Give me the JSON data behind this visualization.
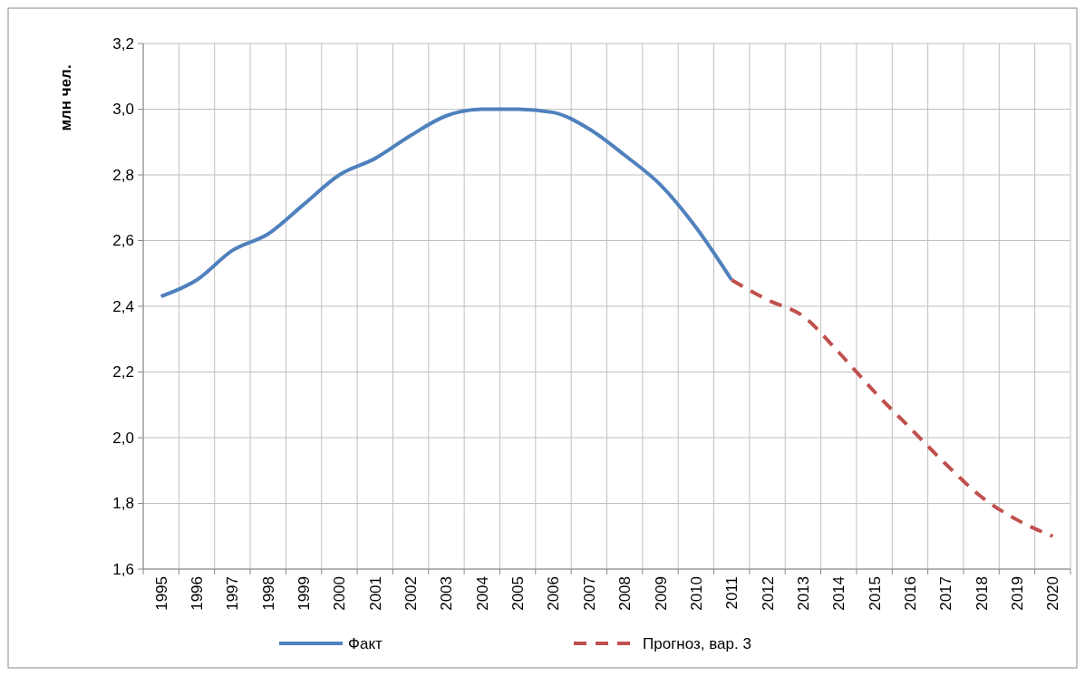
{
  "chart_data": {
    "type": "line",
    "ylabel": "млн чел.",
    "categories": [
      "1995",
      "1996",
      "1997",
      "1998",
      "1999",
      "2000",
      "2001",
      "2002",
      "2003",
      "2004",
      "2005",
      "2006",
      "2007",
      "2008",
      "2009",
      "2010",
      "2011",
      "2012",
      "2013",
      "2014",
      "2015",
      "2016",
      "2017",
      "2018",
      "2019",
      "2020"
    ],
    "series": [
      {
        "name": "Факт",
        "color": "#4f81bd",
        "line_style": "solid",
        "values": [
          2.43,
          2.48,
          2.57,
          2.62,
          2.71,
          2.8,
          2.85,
          2.92,
          2.98,
          3.0,
          3.0,
          2.99,
          2.94,
          2.86,
          2.77,
          2.64,
          2.48,
          null,
          null,
          null,
          null,
          null,
          null,
          null,
          null,
          null
        ]
      },
      {
        "name": "Прогноз, вар. 3",
        "color": "#c0504d",
        "line_style": "dashed",
        "values": [
          null,
          null,
          null,
          null,
          null,
          null,
          null,
          null,
          null,
          null,
          null,
          null,
          null,
          null,
          null,
          null,
          2.48,
          2.42,
          2.37,
          2.26,
          2.14,
          2.03,
          1.92,
          1.82,
          1.75,
          1.7
        ]
      }
    ],
    "ylim": [
      1.6,
      3.2
    ],
    "yticks": [
      {
        "value": 1.6,
        "label": "1,6"
      },
      {
        "value": 1.8,
        "label": "1,8"
      },
      {
        "value": 2.0,
        "label": "2,0"
      },
      {
        "value": 2.2,
        "label": "2,2"
      },
      {
        "value": 2.4,
        "label": "2,4"
      },
      {
        "value": 2.6,
        "label": "2,6"
      },
      {
        "value": 2.8,
        "label": "2,8"
      },
      {
        "value": 3.0,
        "label": "3,0"
      },
      {
        "value": 3.2,
        "label": "3,2"
      }
    ],
    "grid": true,
    "legend": "bottom",
    "marker": "none"
  }
}
